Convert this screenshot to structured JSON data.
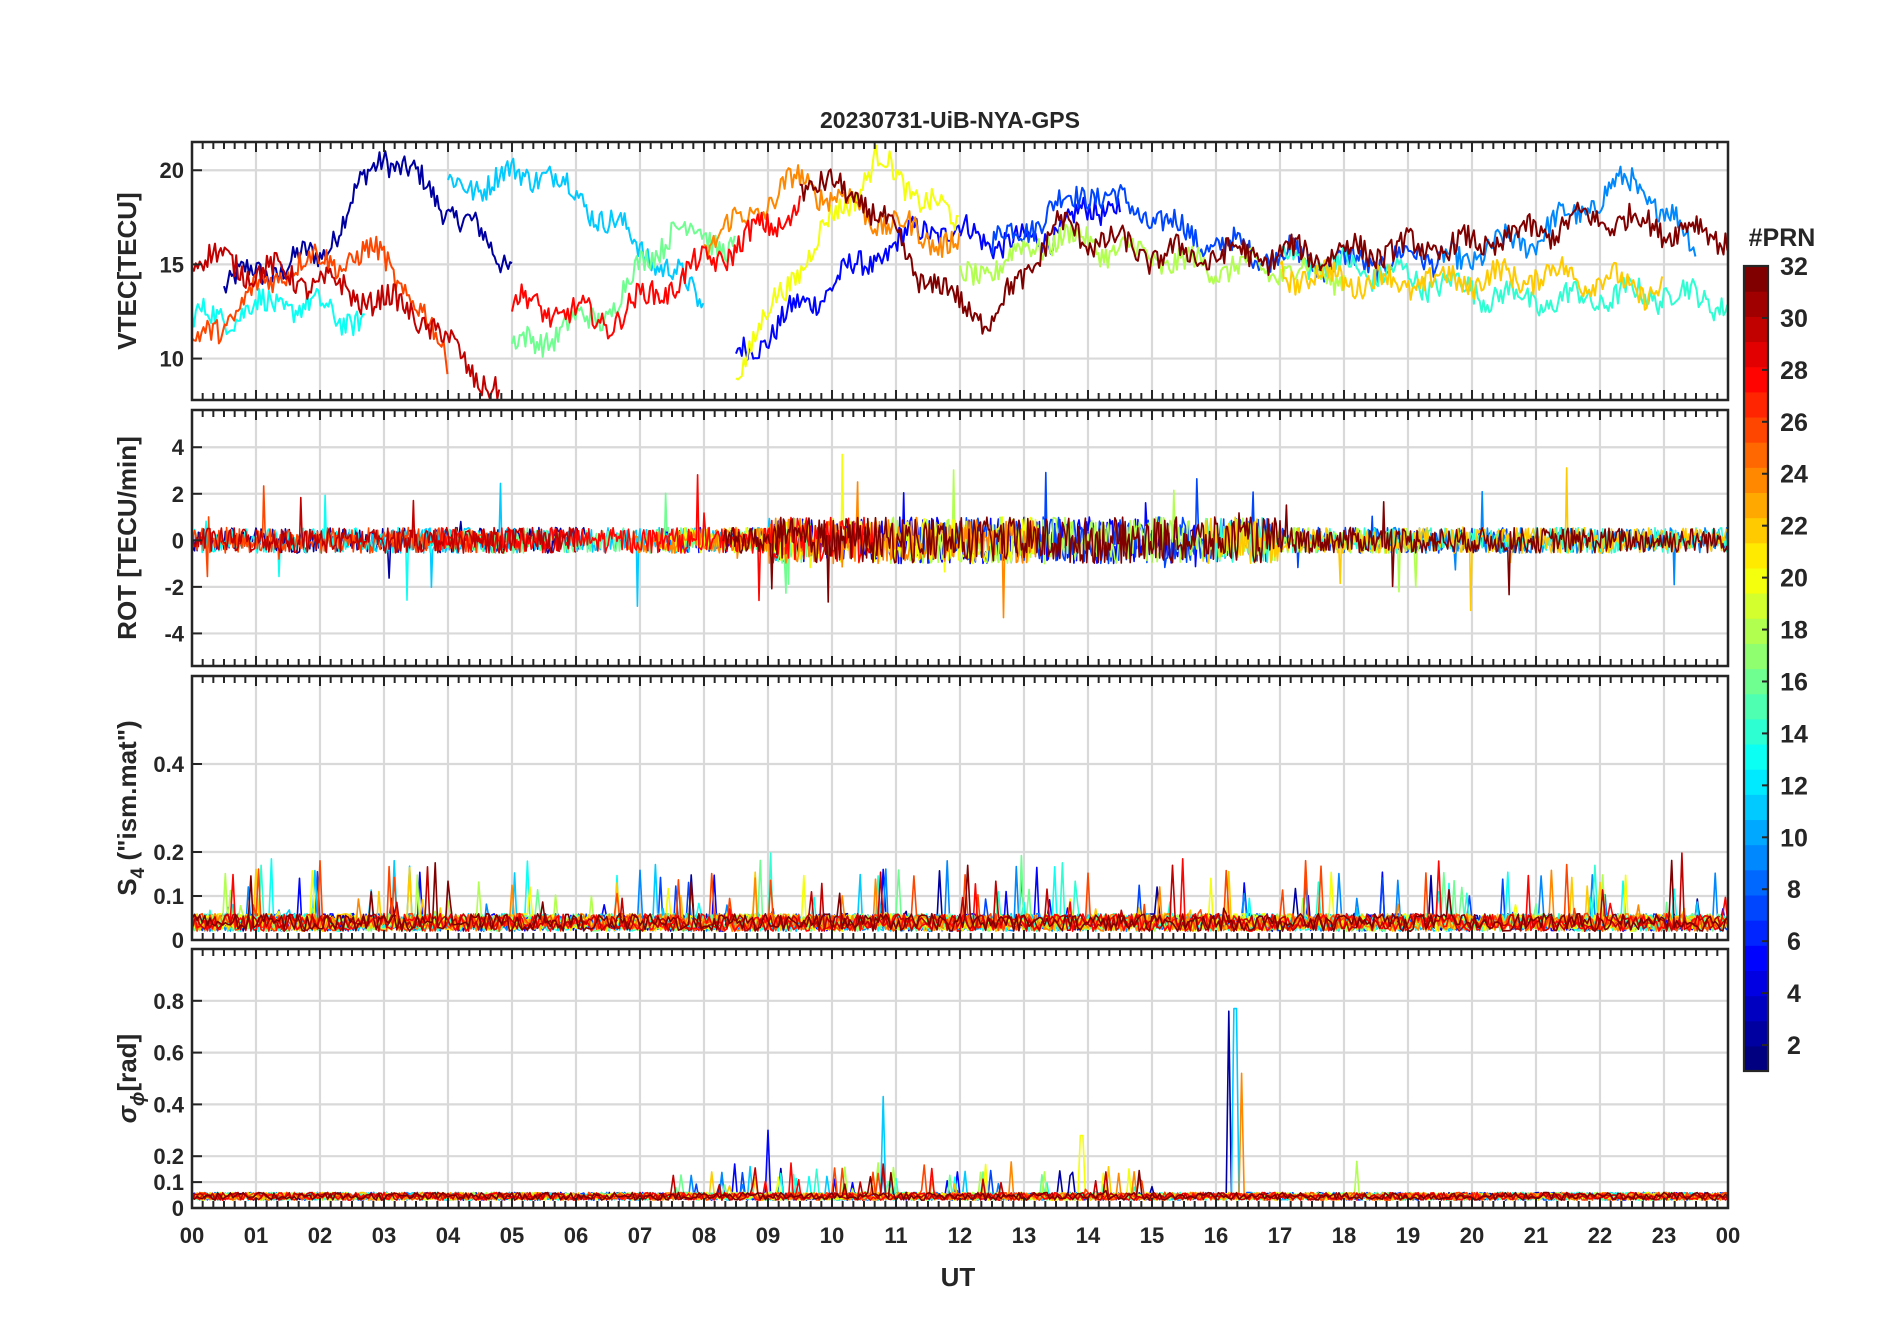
{
  "chart_data": {
    "type": "line",
    "title": "20230731-UiB-NYA-GPS",
    "xlabel": "UT",
    "x_ticks": [
      "00",
      "01",
      "02",
      "03",
      "04",
      "05",
      "06",
      "07",
      "08",
      "09",
      "10",
      "11",
      "12",
      "13",
      "14",
      "15",
      "16",
      "17",
      "18",
      "19",
      "20",
      "21",
      "22",
      "23",
      "00"
    ],
    "xlim": [
      0,
      24
    ],
    "panels": [
      {
        "id": "vtec",
        "ylabel": "VTEC[TECU]",
        "ylim": [
          7.8,
          21.5
        ],
        "yticks": [
          10,
          15,
          20
        ],
        "ytick_labels": [
          "10",
          "15",
          "20"
        ]
      },
      {
        "id": "rot",
        "ylabel": "ROT [TECU/min]",
        "ylim": [
          -5.4,
          5.6
        ],
        "yticks": [
          -4,
          -2,
          0,
          2,
          4
        ],
        "ytick_labels": [
          "-4",
          "-2",
          "0",
          "2",
          "4"
        ]
      },
      {
        "id": "s4",
        "ylabel_main": "S",
        "ylabel_sub": "4",
        "ylabel_rest": " (\"ism.mat\")",
        "ylim": [
          0,
          0.6
        ],
        "yticks": [
          0,
          0.1,
          0.2,
          0.4
        ],
        "ytick_labels": [
          "0",
          "0.1",
          "0.2",
          "0.4"
        ]
      },
      {
        "id": "sigphi",
        "ylabel_main": "σ",
        "ylabel_sub": "ϕ",
        "ylabel_rest": "[rad]",
        "ylim": [
          0,
          1.0
        ],
        "yticks": [
          0,
          0.1,
          0.2,
          0.4,
          0.6,
          0.8
        ],
        "ytick_labels": [
          "0",
          "0.1",
          "0.2",
          "0.4",
          "0.6",
          "0.8"
        ]
      }
    ],
    "colorbar": {
      "label": "#PRN",
      "range": [
        1,
        32
      ],
      "ticks": [
        2,
        4,
        6,
        8,
        10,
        12,
        14,
        16,
        18,
        20,
        22,
        24,
        26,
        28,
        30,
        32
      ],
      "tick_labels": [
        "2",
        "4",
        "6",
        "8",
        "10",
        "12",
        "14",
        "16",
        "18",
        "20",
        "22",
        "24",
        "26",
        "28",
        "30",
        "32"
      ],
      "colormap": "jet"
    },
    "series": [
      {
        "prn": 2,
        "vtec": [
          [
            0.5,
            14.0
          ],
          [
            2.0,
            15.5
          ],
          [
            3.0,
            21.0
          ],
          [
            4.0,
            18.0
          ],
          [
            5.0,
            15.0
          ]
        ],
        "spikes_sigphi": [
          [
            16.2,
            0.76
          ]
        ]
      },
      {
        "prn": 5,
        "vtec": [
          [
            8.5,
            10.0
          ],
          [
            10.0,
            14.0
          ],
          [
            11.5,
            17.0
          ],
          [
            13.0,
            16.0
          ],
          [
            14.5,
            18.5
          ]
        ],
        "spikes_sigphi": [
          [
            9.0,
            0.3
          ]
        ]
      },
      {
        "prn": 7,
        "vtec": [
          [
            12.5,
            16.0
          ],
          [
            14.0,
            19.0
          ],
          [
            16.0,
            16.0
          ],
          [
            18.0,
            15.0
          ],
          [
            19.5,
            15.5
          ]
        ]
      },
      {
        "prn": 9,
        "vtec": [
          [
            19.5,
            15.0
          ],
          [
            21.0,
            16.5
          ],
          [
            22.5,
            19.5
          ],
          [
            23.5,
            16.0
          ]
        ]
      },
      {
        "prn": 11,
        "vtec": [
          [
            4.0,
            19.0
          ],
          [
            5.5,
            20.0
          ],
          [
            7.0,
            16.0
          ],
          [
            8.0,
            13.0
          ]
        ],
        "spikes_sigphi": [
          [
            10.8,
            0.43
          ],
          [
            16.3,
            0.77
          ]
        ]
      },
      {
        "prn": 13,
        "vtec": [
          [
            0.0,
            12.0
          ],
          [
            1.5,
            13.0
          ],
          [
            2.7,
            12.0
          ]
        ]
      },
      {
        "prn": 14,
        "vtec": [
          [
            17.0,
            15.5
          ],
          [
            19.5,
            14.0
          ],
          [
            21.0,
            13.0
          ],
          [
            23.0,
            13.5
          ],
          [
            24.0,
            13.0
          ]
        ]
      },
      {
        "prn": 16,
        "vtec": [
          [
            5.0,
            10.5
          ],
          [
            6.5,
            12.5
          ],
          [
            7.5,
            17.0
          ],
          [
            8.5,
            16.0
          ]
        ]
      },
      {
        "prn": 18,
        "vtec": [
          [
            12.0,
            14.0
          ],
          [
            13.5,
            16.5
          ],
          [
            15.5,
            15.0
          ],
          [
            18.0,
            14.5
          ]
        ],
        "spikes_sigphi": [
          [
            18.2,
            0.18
          ]
        ]
      },
      {
        "prn": 20,
        "vtec": [
          [
            8.5,
            9.5
          ],
          [
            9.5,
            15.0
          ],
          [
            10.7,
            20.5
          ],
          [
            12.0,
            17.0
          ]
        ],
        "spikes_sigphi": [
          [
            13.9,
            0.28
          ]
        ]
      },
      {
        "prn": 22,
        "vtec": [
          [
            17.0,
            14.5
          ],
          [
            19.0,
            14.0
          ],
          [
            21.5,
            14.5
          ],
          [
            23.0,
            13.5
          ]
        ]
      },
      {
        "prn": 24,
        "vtec": [
          [
            8.0,
            16.0
          ],
          [
            9.5,
            19.5
          ],
          [
            11.0,
            17.0
          ],
          [
            12.0,
            16.0
          ]
        ],
        "spikes_sigphi": [
          [
            16.4,
            0.52
          ]
        ]
      },
      {
        "prn": 26,
        "vtec": [
          [
            0.0,
            10.5
          ],
          [
            1.5,
            15.0
          ],
          [
            3.0,
            15.5
          ],
          [
            4.0,
            10.0
          ]
        ]
      },
      {
        "prn": 28,
        "vtec": [
          [
            5.0,
            13.0
          ],
          [
            6.5,
            12.0
          ],
          [
            8.0,
            15.0
          ],
          [
            9.5,
            18.0
          ]
        ]
      },
      {
        "prn": 30,
        "vtec": [
          [
            0.0,
            15.5
          ],
          [
            2.0,
            14.0
          ],
          [
            3.5,
            12.5
          ],
          [
            4.8,
            8.0
          ]
        ]
      },
      {
        "prn": 32,
        "vtec": [
          [
            9.5,
            19.5
          ],
          [
            10.5,
            18.5
          ],
          [
            11.5,
            14.0
          ],
          [
            12.5,
            12.0
          ],
          [
            13.5,
            17.0
          ],
          [
            15.0,
            15.5
          ],
          [
            17.0,
            15.5
          ],
          [
            20.0,
            16.0
          ],
          [
            22.0,
            17.5
          ],
          [
            24.0,
            16.5
          ]
        ]
      }
    ]
  }
}
